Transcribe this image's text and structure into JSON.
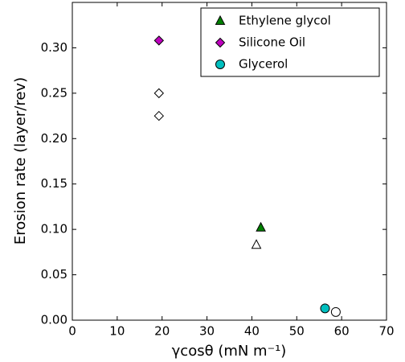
{
  "chart_data": {
    "type": "scatter",
    "x_label": "γcosθ  (mN m⁻¹)",
    "y_label": "Erosion rate (layer/rev)",
    "xlim": [
      0,
      70
    ],
    "xticks": [
      0,
      10,
      20,
      30,
      40,
      50,
      60,
      70
    ],
    "ylim": [
      0,
      0.35
    ],
    "yticks": [
      {
        "value": 0,
        "label": "0.00"
      },
      {
        "value": 0.05,
        "label": "0.05"
      },
      {
        "value": 0.1,
        "label": "0.10"
      },
      {
        "value": 0.15,
        "label": "0.15"
      },
      {
        "value": 0.2,
        "label": "0.20"
      },
      {
        "value": 0.25,
        "label": "0.25"
      },
      {
        "value": 0.3,
        "label": "0.30"
      }
    ],
    "legend": "upper right",
    "series": [
      {
        "name": "Ethylene glycol",
        "color": "#008000",
        "marker": "triangle",
        "x": [
          42
        ],
        "values": [
          0.102
        ]
      },
      {
        "name": "Silicone Oil",
        "color": "#bf00bf",
        "marker": "diamond",
        "x": [
          19.3
        ],
        "values": [
          0.308
        ]
      },
      {
        "name": "Glycerol",
        "color": "#00bfbf",
        "marker": "circle",
        "x": [
          56.3
        ],
        "values": [
          0.013
        ]
      },
      {
        "color": "#ffffff",
        "marker": "triangle",
        "x": [
          41
        ],
        "values": [
          0.083
        ]
      },
      {
        "color": "#ffffff",
        "marker": "diamond",
        "x": [
          19.3,
          19.3
        ],
        "values": [
          0.25,
          0.225
        ]
      },
      {
        "color": "#ffffff",
        "marker": "circle",
        "x": [
          58.7
        ],
        "values": [
          0.009
        ]
      }
    ]
  }
}
